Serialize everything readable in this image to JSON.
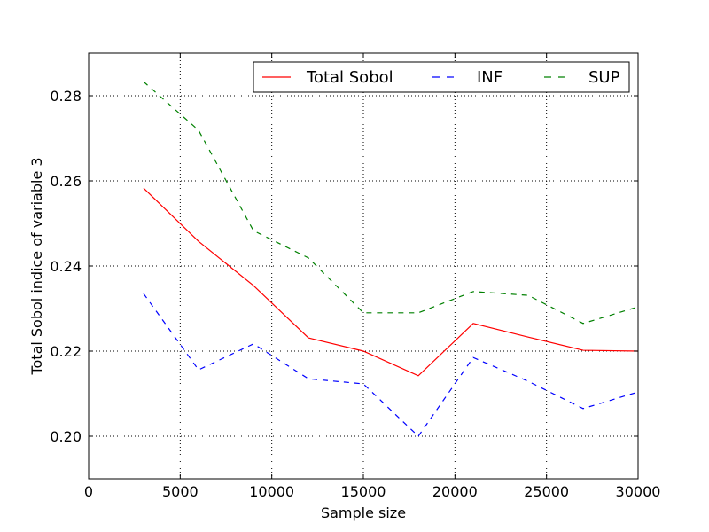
{
  "chart_data": {
    "type": "line",
    "title": "",
    "xlabel": "Sample size",
    "ylabel": "Total Sobol indice of variable 3",
    "xlim": [
      0,
      30000
    ],
    "ylim": [
      0.19,
      0.29
    ],
    "x_ticks": [
      0,
      5000,
      10000,
      15000,
      20000,
      25000,
      30000
    ],
    "x_tick_labels": [
      "0",
      "5000",
      "10000",
      "15000",
      "20000",
      "25000",
      "30000"
    ],
    "y_ticks": [
      0.2,
      0.22,
      0.24,
      0.26,
      0.28
    ],
    "y_tick_labels": [
      "0.20",
      "0.22",
      "0.24",
      "0.26",
      "0.28"
    ],
    "grid": true,
    "legend_position": "top-right",
    "x": [
      3000,
      6000,
      9000,
      12000,
      15000,
      18000,
      21000,
      24000,
      27000,
      30000
    ],
    "series": [
      {
        "name": "Total Sobol",
        "color": "#ff0000",
        "dash": "solid",
        "values": [
          0.2583,
          0.2458,
          0.2354,
          0.2231,
          0.22,
          0.2142,
          0.2265,
          0.2233,
          0.2202,
          0.22
        ]
      },
      {
        "name": "INF",
        "color": "#0000ff",
        "dash": "dashed",
        "values": [
          0.2335,
          0.2156,
          0.2217,
          0.2135,
          0.2123,
          0.2,
          0.2185,
          0.2129,
          0.2065,
          0.2104
        ]
      },
      {
        "name": "SUP",
        "color": "#008000",
        "dash": "dashed",
        "values": [
          0.2833,
          0.2719,
          0.2483,
          0.2419,
          0.229,
          0.229,
          0.234,
          0.2331,
          0.2265,
          0.2304
        ]
      }
    ]
  }
}
